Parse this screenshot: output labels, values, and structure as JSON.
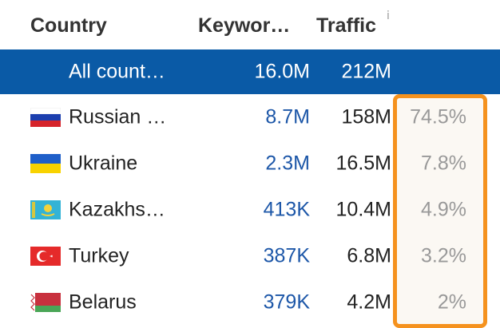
{
  "header": {
    "country": "Country",
    "keywords": "Keywor…",
    "traffic": "Traffic",
    "info": "i"
  },
  "all_row": {
    "name": "All count…",
    "keywords": "16.0M",
    "traffic": "212M"
  },
  "rows": [
    {
      "name": "Russian …",
      "keywords": "8.7M",
      "traffic": "158M",
      "percent": "74.5%",
      "flag": "russia-flag-icon"
    },
    {
      "name": "Ukraine",
      "keywords": "2.3M",
      "traffic": "16.5M",
      "percent": "7.8%",
      "flag": "ukraine-flag-icon"
    },
    {
      "name": "Kazakhs…",
      "keywords": "413K",
      "traffic": "10.4M",
      "percent": "4.9%",
      "flag": "kazakhstan-flag-icon"
    },
    {
      "name": "Turkey",
      "keywords": "387K",
      "traffic": "6.8M",
      "percent": "3.2%",
      "flag": "turkey-flag-icon"
    },
    {
      "name": "Belarus",
      "keywords": "379K",
      "traffic": "4.2M",
      "percent": "2%",
      "flag": "belarus-flag-icon"
    }
  ],
  "colors": {
    "selected_row_bg": "#0a5aa6",
    "keyword_link": "#1d57a8",
    "highlight_border": "#f5921e",
    "percent_text": "#999999"
  }
}
